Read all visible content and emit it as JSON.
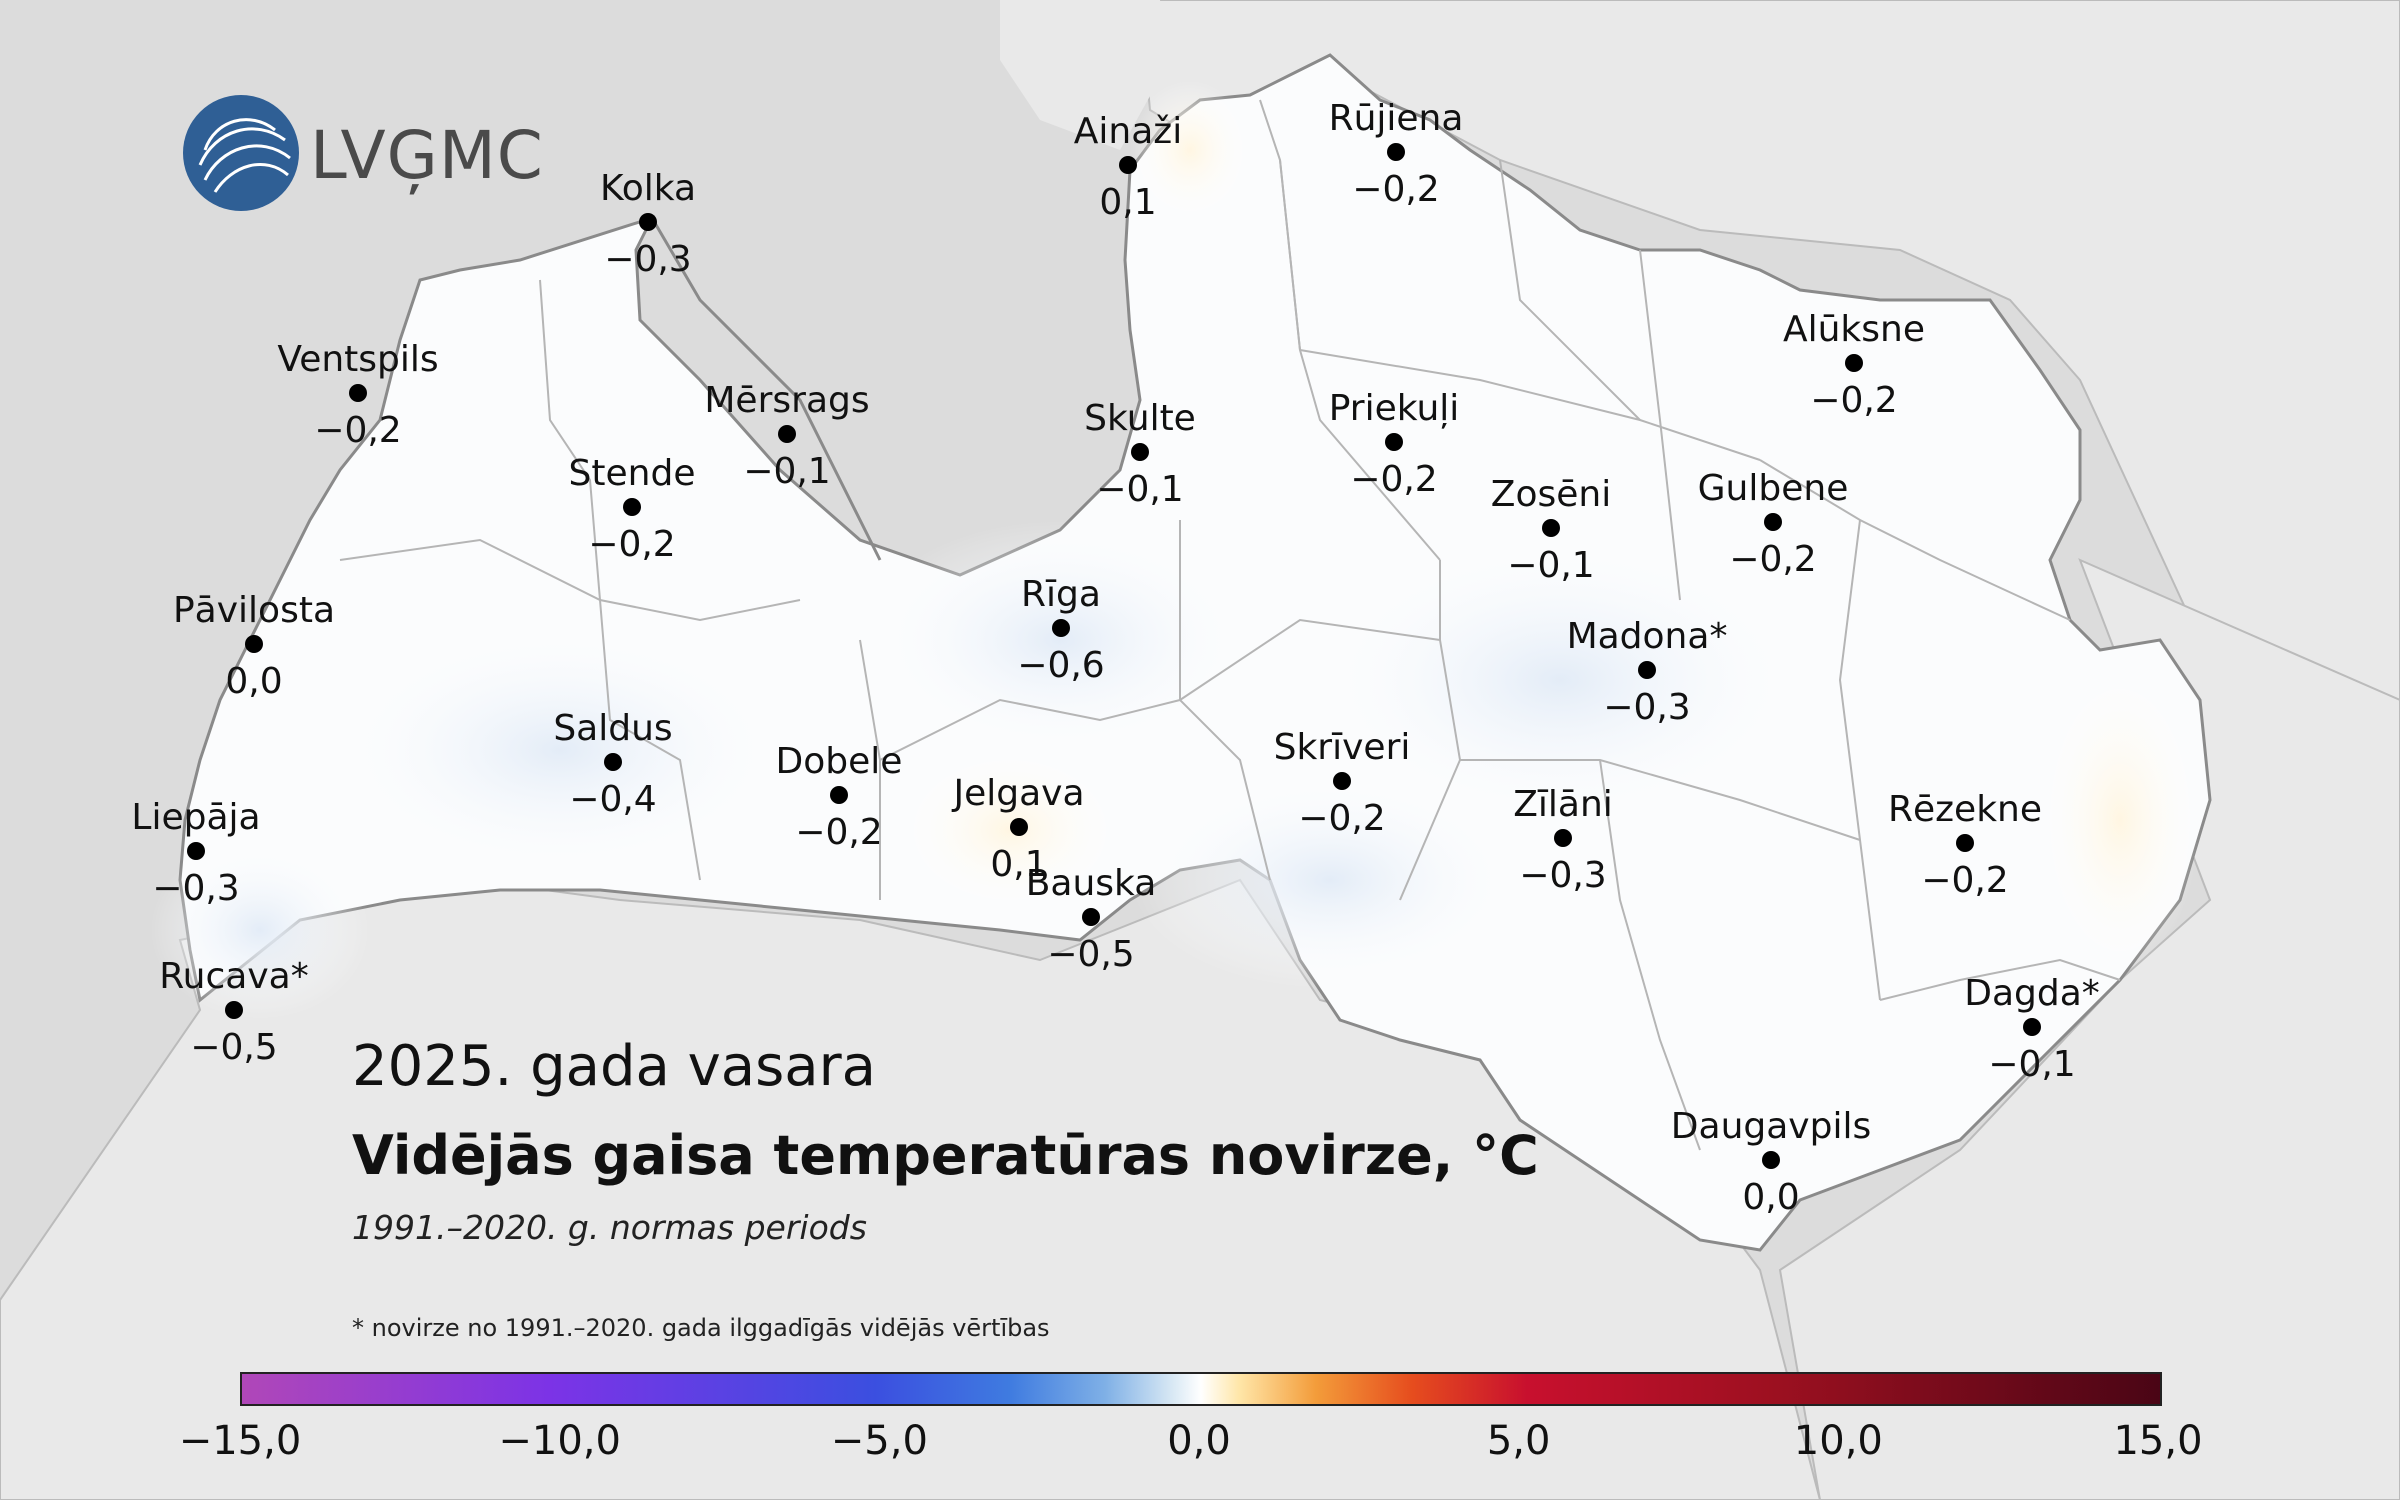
{
  "logo": {
    "text": "LVĢMC"
  },
  "title": {
    "subtitle": "2025. gada vasara",
    "main": "Vidējās gaisa temperatūras novirze, °C",
    "period": "1991.–2020. g. normas periods"
  },
  "footnote": "* novirze no 1991.–2020. gada ilggadīgās vidējās vērtības",
  "stations": [
    {
      "name": "Kolka",
      "value": "−0,3"
    },
    {
      "name": "Ainaži",
      "value": "0,1"
    },
    {
      "name": "Rūjiena",
      "value": "−0,2"
    },
    {
      "name": "Ventspils",
      "value": "−0,2"
    },
    {
      "name": "Mērsrags",
      "value": "−0,1"
    },
    {
      "name": "Skulte",
      "value": "−0,1"
    },
    {
      "name": "Priekuļi",
      "value": "−0,2"
    },
    {
      "name": "Alūksne",
      "value": "−0,2"
    },
    {
      "name": "Stende",
      "value": "−0,2"
    },
    {
      "name": "Zosēni",
      "value": "−0,1"
    },
    {
      "name": "Gulbene",
      "value": "−0,2"
    },
    {
      "name": "Pāvilosta",
      "value": "0,0"
    },
    {
      "name": "Rīga",
      "value": "−0,6"
    },
    {
      "name": "Madona*",
      "value": "−0,3"
    },
    {
      "name": "Saldus",
      "value": "−0,4"
    },
    {
      "name": "Dobele",
      "value": "−0,2"
    },
    {
      "name": "Jelgava",
      "value": "0,1"
    },
    {
      "name": "Skrīveri",
      "value": "−0,2"
    },
    {
      "name": "Liepāja",
      "value": "−0,3"
    },
    {
      "name": "Zīlāni",
      "value": "−0,3"
    },
    {
      "name": "Rēzekne",
      "value": "−0,2"
    },
    {
      "name": "Bauska",
      "value": "−0,5"
    },
    {
      "name": "Rucava*",
      "value": "−0,5"
    },
    {
      "name": "Dagda*",
      "value": "−0,1"
    },
    {
      "name": "Daugavpils",
      "value": "0,0"
    }
  ],
  "legend": {
    "ticks": [
      "−15,0",
      "−10,0",
      "−5,0",
      "0,0",
      "5,0",
      "10,0",
      "15,0"
    ],
    "range": [
      -15,
      15
    ],
    "colors": [
      "#b047b8",
      "#7c33e6",
      "#3b4fe0",
      "#7fb0e6",
      "#ffffff",
      "#f39c3a",
      "#c8102e",
      "#4a0515"
    ]
  },
  "colors": {
    "sea": "#dcdcdc",
    "land_outside": "#e8e8e8",
    "border": "#9a9a9a"
  }
}
